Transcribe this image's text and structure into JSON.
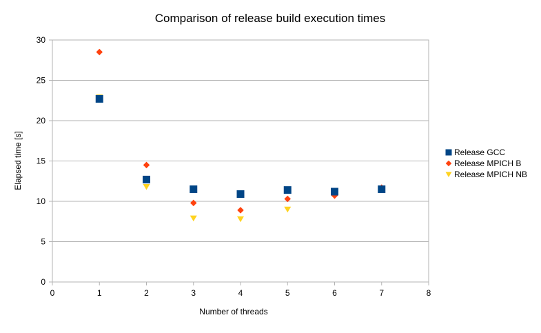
{
  "chart_data": {
    "type": "scatter",
    "title": "Comparison of release build execution times",
    "xlabel": "Number of threads",
    "ylabel": "Elapsed time [s]",
    "xlim": [
      0,
      8
    ],
    "ylim": [
      0,
      30
    ],
    "x_ticks": [
      "0",
      "1",
      "2",
      "3",
      "4",
      "5",
      "6",
      "7",
      "8"
    ],
    "y_ticks": [
      "0",
      "5",
      "10",
      "15",
      "20",
      "25",
      "30"
    ],
    "grid": "horizontal",
    "legend_position": "right",
    "series": [
      {
        "name": "Release GCC",
        "marker": "square",
        "color": "#004586",
        "x": [
          1,
          2,
          3,
          4,
          5,
          6,
          7
        ],
        "y": [
          22.7,
          12.7,
          11.5,
          10.9,
          11.4,
          11.2,
          11.5
        ]
      },
      {
        "name": "Release MPICH B",
        "marker": "diamond",
        "color": "#ff420e",
        "x": [
          1,
          2,
          3,
          4,
          5,
          6,
          7
        ],
        "y": [
          28.5,
          14.5,
          9.8,
          8.9,
          10.3,
          10.7,
          11.7
        ]
      },
      {
        "name": "Release MPICH NB",
        "marker": "triangle-down",
        "color": "#ffd320",
        "x": [
          1,
          2,
          3,
          4,
          5,
          6,
          7
        ],
        "y": [
          22.9,
          11.8,
          7.9,
          7.8,
          9.0,
          11.0,
          11.6
        ]
      }
    ]
  }
}
